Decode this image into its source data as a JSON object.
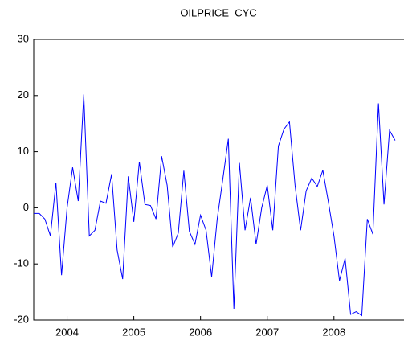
{
  "chart_data": {
    "type": "line",
    "title": "OILPRICE_CYC",
    "x": [
      2004,
      2004.083,
      2004.167,
      2004.25,
      2004.333,
      2004.417,
      2004.5,
      2004.583,
      2004.667,
      2004.75,
      2004.833,
      2004.917,
      2005,
      2005.083,
      2005.167,
      2005.25,
      2005.333,
      2005.417,
      2005.5,
      2005.583,
      2005.667,
      2005.75,
      2005.833,
      2005.917,
      2006,
      2006.083,
      2006.167,
      2006.25,
      2006.333,
      2006.417,
      2006.5,
      2006.583,
      2006.667,
      2006.75,
      2006.833,
      2006.917,
      2007,
      2007.083,
      2007.167,
      2007.25,
      2007.333,
      2007.417,
      2007.5,
      2007.583,
      2007.667,
      2007.75,
      2007.833,
      2007.917,
      2008,
      2008.083,
      2008.167,
      2008.25,
      2008.333,
      2008.417,
      2008.5,
      2008.583,
      2008.667,
      2008.75,
      2008.833,
      2008.917,
      2009,
      2009.083,
      2009.167,
      2009.25,
      2009.333,
      2009.417
    ],
    "series": [
      {
        "name": "OILPRICE_CYC",
        "color": "#0000ff",
        "values": [
          -1,
          -1,
          -2,
          -5,
          4.5,
          -12,
          0,
          7.2,
          1.2,
          20.2,
          -5,
          -4,
          1.2,
          0.8,
          6,
          -7.5,
          -12.7,
          5.6,
          -2.5,
          8.2,
          0.6,
          0.4,
          -2,
          9.2,
          4,
          -7,
          -4.5,
          6.6,
          -4.2,
          -6.5,
          -1.3,
          -4,
          -12.3,
          -2,
          5,
          12.3,
          -18,
          8,
          -4,
          1.8,
          -6.5,
          0,
          4,
          -4,
          11,
          14,
          15.3,
          4,
          -4,
          3,
          5.3,
          3.8,
          6.7,
          1,
          -5,
          -13,
          -9,
          -19,
          -18.5,
          -19.2,
          -2,
          -4.7,
          18.6,
          0.6,
          13.8,
          12
        ]
      }
    ],
    "xlim": [
      2004,
      2009.55
    ],
    "xticks": [
      {
        "value": 2004.5,
        "label": "2004"
      },
      {
        "value": 2005.5,
        "label": "2005"
      },
      {
        "value": 2006.5,
        "label": "2006"
      },
      {
        "value": 2007.5,
        "label": "2007"
      },
      {
        "value": 2008.5,
        "label": "2008"
      }
    ],
    "ylim": [
      -20,
      30
    ],
    "yticks": [
      -20,
      -10,
      0,
      10,
      20,
      30
    ]
  }
}
